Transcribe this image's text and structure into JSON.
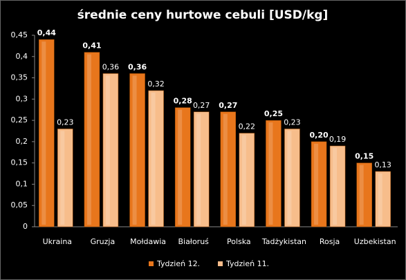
{
  "chart_data": {
    "type": "bar",
    "title": "średnie ceny hurtowe cebuli [USD/kg]",
    "categories": [
      "Ukraina",
      "Gruzja",
      "Mołdawia",
      "Białoruś",
      "Polska",
      "Tadżykistan",
      "Rosja",
      "Uzbekistan"
    ],
    "series": [
      {
        "name": "Tydzień 12.",
        "color": "#e8761c",
        "values": [
          0.44,
          0.41,
          0.36,
          0.28,
          0.27,
          0.25,
          0.2,
          0.15
        ],
        "value_labels": [
          "0,44",
          "0,41",
          "0,36",
          "0,28",
          "0,27",
          "0,25",
          "0,20",
          "0,15"
        ]
      },
      {
        "name": "Tydzień 11.",
        "color": "#f7bd8b",
        "values": [
          0.23,
          0.36,
          0.32,
          0.27,
          0.22,
          0.23,
          0.19,
          0.13
        ],
        "value_labels": [
          "0,23",
          "0,36",
          "0,32",
          "0,27",
          "0,22",
          "0,23",
          "0,19",
          "0,13"
        ]
      }
    ],
    "ylim": [
      0,
      0.45
    ],
    "yticks": [
      0,
      {
        "value": 0.05,
        "label": "0,05"
      },
      {
        "value": 0.1,
        "label": "0,1"
      },
      {
        "value": 0.15,
        "label": "0,15"
      },
      {
        "value": 0.2,
        "label": "0,2"
      },
      {
        "value": 0.25,
        "label": "0,25"
      },
      {
        "value": 0.3,
        "label": "0,3"
      },
      {
        "value": 0.35,
        "label": "0,35"
      },
      {
        "value": 0.4,
        "label": "0,4"
      },
      {
        "value": 0.45,
        "label": "0,45"
      }
    ],
    "legend": "bottom"
  }
}
